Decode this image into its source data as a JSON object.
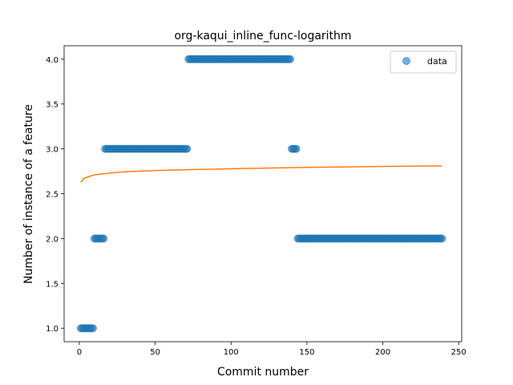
{
  "chart_data": {
    "type": "scatter",
    "title": "org-kaqui_inline_func-logarithm",
    "xlabel": "Commit number",
    "ylabel": "Number of instance of a feature",
    "xlim": [
      -10,
      252
    ],
    "ylim": [
      0.85,
      4.15
    ],
    "xticks": [
      0,
      50,
      100,
      150,
      200,
      250
    ],
    "yticks": [
      1.0,
      1.5,
      2.0,
      2.5,
      3.0,
      3.5,
      4.0
    ],
    "xtick_labels": [
      "0",
      "50",
      "100",
      "150",
      "200",
      "250"
    ],
    "ytick_labels": [
      "1.0",
      "1.5",
      "2.0",
      "2.5",
      "3.0",
      "3.5",
      "4.0"
    ],
    "legend": {
      "position": "top-right",
      "entries": [
        "data"
      ]
    },
    "grid": false,
    "series": [
      {
        "name": "data",
        "kind": "scatter",
        "color": "#1f77b4",
        "segments": [
          {
            "x_start": 1,
            "x_end": 9,
            "y": 1
          },
          {
            "x_start": 10,
            "x_end": 16,
            "y": 2
          },
          {
            "x_start": 17,
            "x_end": 71,
            "y": 3
          },
          {
            "x_start": 72,
            "x_end": 139,
            "y": 4
          },
          {
            "x_start": 140,
            "x_end": 143,
            "y": 3
          },
          {
            "x_start": 144,
            "x_end": 239,
            "y": 2
          }
        ]
      },
      {
        "kind": "line",
        "color": "#ff7f0e",
        "points": [
          [
            1,
            2.63
          ],
          [
            3,
            2.67
          ],
          [
            6,
            2.69
          ],
          [
            10,
            2.71
          ],
          [
            15,
            2.72
          ],
          [
            20,
            2.73
          ],
          [
            30,
            2.745
          ],
          [
            40,
            2.752
          ],
          [
            50,
            2.758
          ],
          [
            60,
            2.763
          ],
          [
            75,
            2.769
          ],
          [
            90,
            2.774
          ],
          [
            100,
            2.778
          ],
          [
            125,
            2.786
          ],
          [
            150,
            2.793
          ],
          [
            175,
            2.799
          ],
          [
            200,
            2.804
          ],
          [
            225,
            2.808
          ],
          [
            239,
            2.81
          ]
        ]
      }
    ]
  }
}
